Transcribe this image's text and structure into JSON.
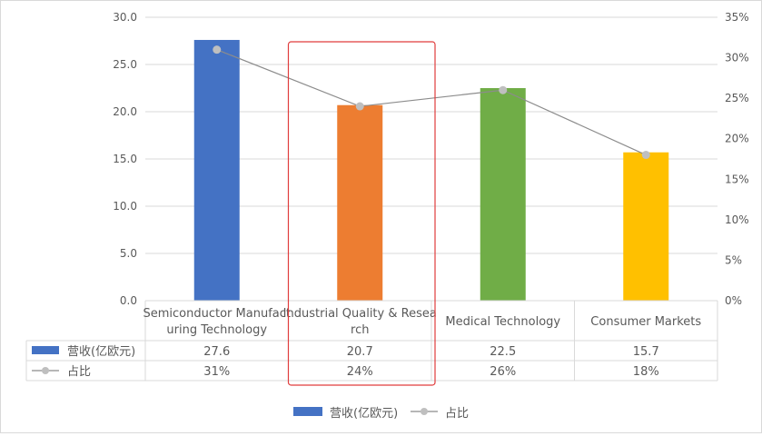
{
  "chart_data": {
    "type": "bar",
    "categories": [
      "Semiconductor Manufacturing Technology",
      "Industrial Quality & Research",
      "Medical Technology",
      "Consumer Markets"
    ],
    "category_label_lines": [
      [
        "Semiconductor Manufact",
        "uring Technology"
      ],
      [
        "Industrial Quality & Resea",
        "rch"
      ],
      [
        "Medical Technology"
      ],
      [
        "Consumer Markets"
      ]
    ],
    "series": [
      {
        "name": "营收(亿欧元)",
        "type": "bar",
        "axis": "left",
        "values": [
          27.6,
          20.7,
          22.5,
          15.7
        ],
        "display": [
          "27.6",
          "20.7",
          "22.5",
          "15.7"
        ],
        "colors": [
          "#4472C4",
          "#ED7D31",
          "#70AD47",
          "#FFC000"
        ]
      },
      {
        "name": "占比",
        "type": "line",
        "axis": "right",
        "values": [
          0.31,
          0.24,
          0.26,
          0.18
        ],
        "display": [
          "31%",
          "24%",
          "26%",
          "18%"
        ],
        "color": "#A5A5A5"
      }
    ],
    "y_left": {
      "ylim": [
        0,
        30
      ],
      "ticks": [
        0,
        5,
        10,
        15,
        20,
        25,
        30
      ],
      "tick_labels": [
        "0.0",
        "5.0",
        "10.0",
        "15.0",
        "20.0",
        "25.0",
        "30.0"
      ]
    },
    "y_right": {
      "ylim": [
        0,
        0.35
      ],
      "ticks": [
        0,
        0.05,
        0.1,
        0.15,
        0.2,
        0.25,
        0.3,
        0.35
      ],
      "tick_labels": [
        "0%",
        "5%",
        "10%",
        "15%",
        "20%",
        "25%",
        "30%",
        "35%"
      ]
    },
    "grid": true,
    "legend": "bottom",
    "data_table": true,
    "highlight": {
      "category_index": 1,
      "color": "#E03C3C"
    }
  }
}
